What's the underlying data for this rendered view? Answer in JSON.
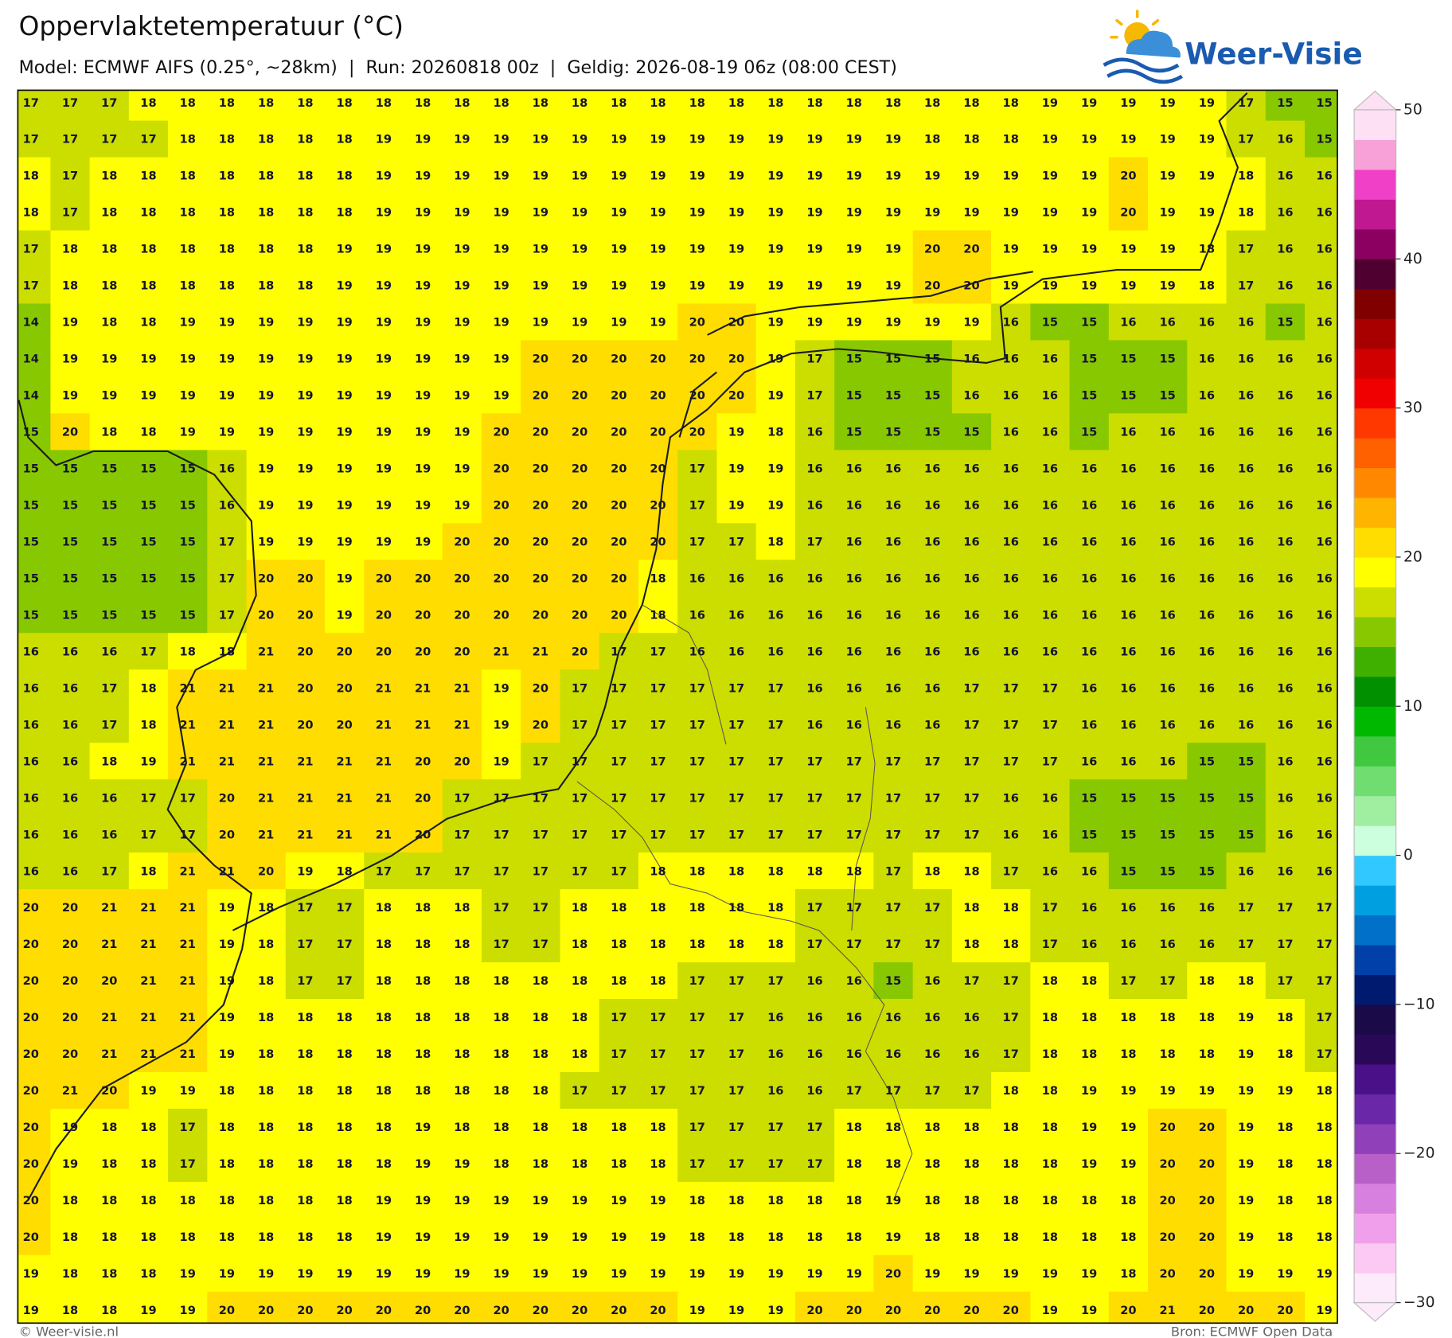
{
  "chart_data": {
    "type": "heatmap",
    "title": "Oppervlaktetemperatuur (°C)",
    "subtitle": "Model: ECMWF AIFS (0.25°, ~28km)  |  Run: 20260818 00z  |  Geldig: 2026-08-19 06z (08:00 CEST)",
    "values": [
      [
        17,
        17,
        17,
        18,
        18,
        18,
        18,
        18,
        18,
        18,
        18,
        18,
        18,
        18,
        18,
        18,
        18,
        18,
        18,
        18,
        18,
        18,
        18,
        18,
        18,
        18,
        19,
        19,
        19,
        19,
        19,
        17,
        15,
        15
      ],
      [
        17,
        17,
        17,
        17,
        18,
        18,
        18,
        18,
        18,
        19,
        19,
        19,
        19,
        19,
        19,
        19,
        19,
        19,
        19,
        19,
        19,
        19,
        19,
        18,
        18,
        18,
        19,
        19,
        19,
        19,
        19,
        17,
        16,
        15
      ],
      [
        18,
        17,
        18,
        18,
        18,
        18,
        18,
        18,
        18,
        19,
        19,
        19,
        19,
        19,
        19,
        19,
        19,
        19,
        19,
        19,
        19,
        19,
        19,
        19,
        19,
        19,
        19,
        19,
        20,
        19,
        19,
        18,
        16,
        16
      ],
      [
        18,
        17,
        18,
        18,
        18,
        18,
        18,
        18,
        18,
        19,
        19,
        19,
        19,
        19,
        19,
        19,
        19,
        19,
        19,
        19,
        19,
        19,
        19,
        19,
        19,
        19,
        19,
        19,
        20,
        19,
        19,
        18,
        16,
        16
      ],
      [
        17,
        18,
        18,
        18,
        18,
        18,
        18,
        18,
        19,
        19,
        19,
        19,
        19,
        19,
        19,
        19,
        19,
        19,
        19,
        19,
        19,
        19,
        19,
        20,
        20,
        19,
        19,
        19,
        19,
        19,
        18,
        17,
        16,
        16
      ],
      [
        17,
        18,
        18,
        18,
        18,
        18,
        18,
        18,
        19,
        19,
        19,
        19,
        19,
        19,
        19,
        19,
        19,
        19,
        19,
        19,
        19,
        19,
        19,
        20,
        20,
        19,
        19,
        19,
        19,
        19,
        18,
        17,
        16,
        16
      ],
      [
        14,
        19,
        18,
        18,
        19,
        19,
        19,
        19,
        19,
        19,
        19,
        19,
        19,
        19,
        19,
        19,
        19,
        20,
        20,
        19,
        19,
        19,
        19,
        19,
        19,
        16,
        15,
        15,
        16,
        16,
        16,
        16,
        15,
        16
      ],
      [
        14,
        19,
        19,
        19,
        19,
        19,
        19,
        19,
        19,
        19,
        19,
        19,
        19,
        20,
        20,
        20,
        20,
        20,
        20,
        19,
        17,
        15,
        15,
        15,
        16,
        16,
        16,
        15,
        15,
        15,
        16,
        16,
        16,
        16
      ],
      [
        14,
        19,
        19,
        19,
        19,
        19,
        19,
        19,
        19,
        19,
        19,
        19,
        19,
        20,
        20,
        20,
        20,
        20,
        20,
        19,
        17,
        15,
        15,
        15,
        16,
        16,
        16,
        15,
        15,
        15,
        16,
        16,
        16,
        16
      ],
      [
        15,
        20,
        18,
        18,
        19,
        19,
        19,
        19,
        19,
        19,
        19,
        19,
        20,
        20,
        20,
        20,
        20,
        20,
        19,
        18,
        16,
        15,
        15,
        15,
        15,
        16,
        16,
        15,
        16,
        16,
        16,
        16,
        16,
        16
      ],
      [
        15,
        15,
        15,
        15,
        15,
        16,
        19,
        19,
        19,
        19,
        19,
        19,
        20,
        20,
        20,
        20,
        20,
        17,
        19,
        19,
        16,
        16,
        16,
        16,
        16,
        16,
        16,
        16,
        16,
        16,
        16,
        16,
        16,
        16
      ],
      [
        15,
        15,
        15,
        15,
        15,
        16,
        19,
        19,
        19,
        19,
        19,
        19,
        20,
        20,
        20,
        20,
        20,
        17,
        19,
        19,
        16,
        16,
        16,
        16,
        16,
        16,
        16,
        16,
        16,
        16,
        16,
        16,
        16,
        16
      ],
      [
        15,
        15,
        15,
        15,
        15,
        17,
        19,
        19,
        19,
        19,
        19,
        20,
        20,
        20,
        20,
        20,
        20,
        17,
        17,
        18,
        17,
        16,
        16,
        16,
        16,
        16,
        16,
        16,
        16,
        16,
        16,
        16,
        16,
        16
      ],
      [
        15,
        15,
        15,
        15,
        15,
        17,
        20,
        20,
        19,
        20,
        20,
        20,
        20,
        20,
        20,
        20,
        18,
        16,
        16,
        16,
        16,
        16,
        16,
        16,
        16,
        16,
        16,
        16,
        16,
        16,
        16,
        16,
        16,
        16
      ],
      [
        15,
        15,
        15,
        15,
        15,
        17,
        20,
        20,
        19,
        20,
        20,
        20,
        20,
        20,
        20,
        20,
        18,
        16,
        16,
        16,
        16,
        16,
        16,
        16,
        16,
        16,
        16,
        16,
        16,
        16,
        16,
        16,
        16,
        16
      ],
      [
        16,
        16,
        16,
        17,
        18,
        18,
        21,
        20,
        20,
        20,
        20,
        20,
        21,
        21,
        20,
        17,
        17,
        16,
        16,
        16,
        16,
        16,
        16,
        16,
        16,
        16,
        16,
        16,
        16,
        16,
        16,
        16,
        16,
        16
      ],
      [
        16,
        16,
        17,
        18,
        21,
        21,
        21,
        20,
        20,
        21,
        21,
        21,
        19,
        20,
        17,
        17,
        17,
        17,
        17,
        17,
        16,
        16,
        16,
        16,
        17,
        17,
        17,
        16,
        16,
        16,
        16,
        16,
        16,
        16
      ],
      [
        16,
        16,
        17,
        18,
        21,
        21,
        21,
        20,
        20,
        21,
        21,
        21,
        19,
        20,
        17,
        17,
        17,
        17,
        17,
        17,
        16,
        16,
        16,
        16,
        17,
        17,
        17,
        16,
        16,
        16,
        16,
        16,
        16,
        16
      ],
      [
        16,
        16,
        18,
        19,
        21,
        21,
        21,
        21,
        21,
        21,
        20,
        20,
        19,
        17,
        17,
        17,
        17,
        17,
        17,
        17,
        17,
        17,
        17,
        17,
        17,
        17,
        17,
        16,
        16,
        16,
        15,
        15,
        16,
        16
      ],
      [
        16,
        16,
        16,
        17,
        17,
        20,
        21,
        21,
        21,
        21,
        20,
        17,
        17,
        17,
        17,
        17,
        17,
        17,
        17,
        17,
        17,
        17,
        17,
        17,
        17,
        16,
        16,
        15,
        15,
        15,
        15,
        15,
        16,
        16
      ],
      [
        16,
        16,
        16,
        17,
        17,
        20,
        21,
        21,
        21,
        21,
        20,
        17,
        17,
        17,
        17,
        17,
        17,
        17,
        17,
        17,
        17,
        17,
        17,
        17,
        17,
        16,
        16,
        15,
        15,
        15,
        15,
        15,
        16,
        16
      ],
      [
        16,
        16,
        17,
        18,
        21,
        21,
        20,
        19,
        18,
        17,
        17,
        17,
        17,
        17,
        17,
        17,
        18,
        18,
        18,
        18,
        18,
        18,
        17,
        18,
        18,
        17,
        16,
        16,
        15,
        15,
        15,
        16,
        16,
        16
      ],
      [
        20,
        20,
        21,
        21,
        21,
        19,
        18,
        17,
        17,
        18,
        18,
        18,
        17,
        17,
        18,
        18,
        18,
        18,
        18,
        18,
        17,
        17,
        17,
        17,
        18,
        18,
        17,
        16,
        16,
        16,
        16,
        17,
        17,
        17
      ],
      [
        20,
        20,
        21,
        21,
        21,
        19,
        18,
        17,
        17,
        18,
        18,
        18,
        17,
        17,
        18,
        18,
        18,
        18,
        18,
        18,
        17,
        17,
        17,
        17,
        18,
        18,
        17,
        16,
        16,
        16,
        16,
        17,
        17,
        17
      ],
      [
        20,
        20,
        20,
        21,
        21,
        19,
        18,
        17,
        17,
        18,
        18,
        18,
        18,
        18,
        18,
        18,
        18,
        17,
        17,
        17,
        16,
        16,
        15,
        16,
        17,
        17,
        18,
        18,
        17,
        17,
        18,
        18,
        17,
        17
      ],
      [
        20,
        20,
        21,
        21,
        21,
        19,
        18,
        18,
        18,
        18,
        18,
        18,
        18,
        18,
        18,
        17,
        17,
        17,
        17,
        16,
        16,
        16,
        16,
        16,
        16,
        17,
        18,
        18,
        18,
        18,
        18,
        19,
        18,
        17
      ],
      [
        20,
        20,
        21,
        21,
        21,
        19,
        18,
        18,
        18,
        18,
        18,
        18,
        18,
        18,
        18,
        17,
        17,
        17,
        17,
        16,
        16,
        16,
        16,
        16,
        16,
        17,
        18,
        18,
        18,
        18,
        18,
        19,
        18,
        17
      ],
      [
        20,
        21,
        20,
        19,
        19,
        18,
        18,
        18,
        18,
        18,
        18,
        18,
        18,
        18,
        17,
        17,
        17,
        17,
        17,
        16,
        16,
        17,
        17,
        17,
        17,
        18,
        18,
        19,
        19,
        19,
        19,
        19,
        19,
        18
      ],
      [
        20,
        19,
        18,
        18,
        17,
        18,
        18,
        18,
        18,
        18,
        19,
        18,
        18,
        18,
        18,
        18,
        18,
        17,
        17,
        17,
        17,
        18,
        18,
        18,
        18,
        18,
        18,
        19,
        19,
        20,
        20,
        19,
        18,
        18
      ],
      [
        20,
        19,
        18,
        18,
        17,
        18,
        18,
        18,
        18,
        18,
        19,
        19,
        18,
        18,
        18,
        18,
        18,
        17,
        17,
        17,
        17,
        18,
        18,
        18,
        18,
        18,
        18,
        19,
        19,
        20,
        20,
        19,
        18,
        18
      ],
      [
        20,
        18,
        18,
        18,
        18,
        18,
        18,
        18,
        18,
        19,
        19,
        19,
        19,
        19,
        19,
        19,
        19,
        18,
        18,
        18,
        18,
        18,
        19,
        18,
        18,
        18,
        18,
        18,
        18,
        20,
        20,
        19,
        18,
        18
      ],
      [
        20,
        18,
        18,
        18,
        18,
        18,
        18,
        18,
        18,
        19,
        19,
        19,
        19,
        19,
        19,
        19,
        19,
        18,
        18,
        18,
        18,
        18,
        19,
        18,
        18,
        18,
        18,
        18,
        18,
        20,
        20,
        19,
        18,
        18
      ],
      [
        19,
        18,
        18,
        18,
        19,
        19,
        19,
        19,
        19,
        19,
        19,
        19,
        19,
        19,
        19,
        19,
        19,
        19,
        19,
        19,
        19,
        19,
        20,
        19,
        19,
        19,
        19,
        19,
        18,
        20,
        20,
        19,
        19,
        19
      ],
      [
        19,
        18,
        18,
        19,
        19,
        20,
        20,
        20,
        20,
        20,
        20,
        20,
        20,
        20,
        20,
        20,
        20,
        19,
        19,
        19,
        20,
        20,
        20,
        20,
        20,
        20,
        19,
        19,
        20,
        21,
        20,
        20,
        20,
        19
      ]
    ],
    "clim": [
      -30,
      50
    ],
    "colors": [
      "#fdeafa",
      "#fcc8f4",
      "#f0a0ea",
      "#d880e0",
      "#b860c8",
      "#9040b8",
      "#6a28a8",
      "#4a1088",
      "#2a0858",
      "#1a0a48",
      "#001a70",
      "#0040a8",
      "#0070c8",
      "#00a0e0",
      "#30c8ff",
      "#ccffdd",
      "#a0eea0",
      "#70dd70",
      "#40c840",
      "#00b800",
      "#009000",
      "#40b000",
      "#88c800",
      "#ccdd00",
      "#ffff00",
      "#ffdd00",
      "#ffb400",
      "#ff8800",
      "#ff6000",
      "#ff3800",
      "#f00000",
      "#d00000",
      "#a80000",
      "#800000",
      "#500030",
      "#8b0060",
      "#c01890",
      "#f040c8",
      "#f8a0d8",
      "#fde0f4"
    ],
    "ticks": [
      {
        "value": -30,
        "label": "−30"
      },
      {
        "value": -20,
        "label": "−20"
      },
      {
        "value": -10,
        "label": "−10"
      },
      0,
      10,
      20,
      30,
      40,
      50
    ]
  },
  "logo": "Weer-Visie",
  "credit": "© Weer-visie.nl",
  "source": "Bron: ECMWF Open Data"
}
